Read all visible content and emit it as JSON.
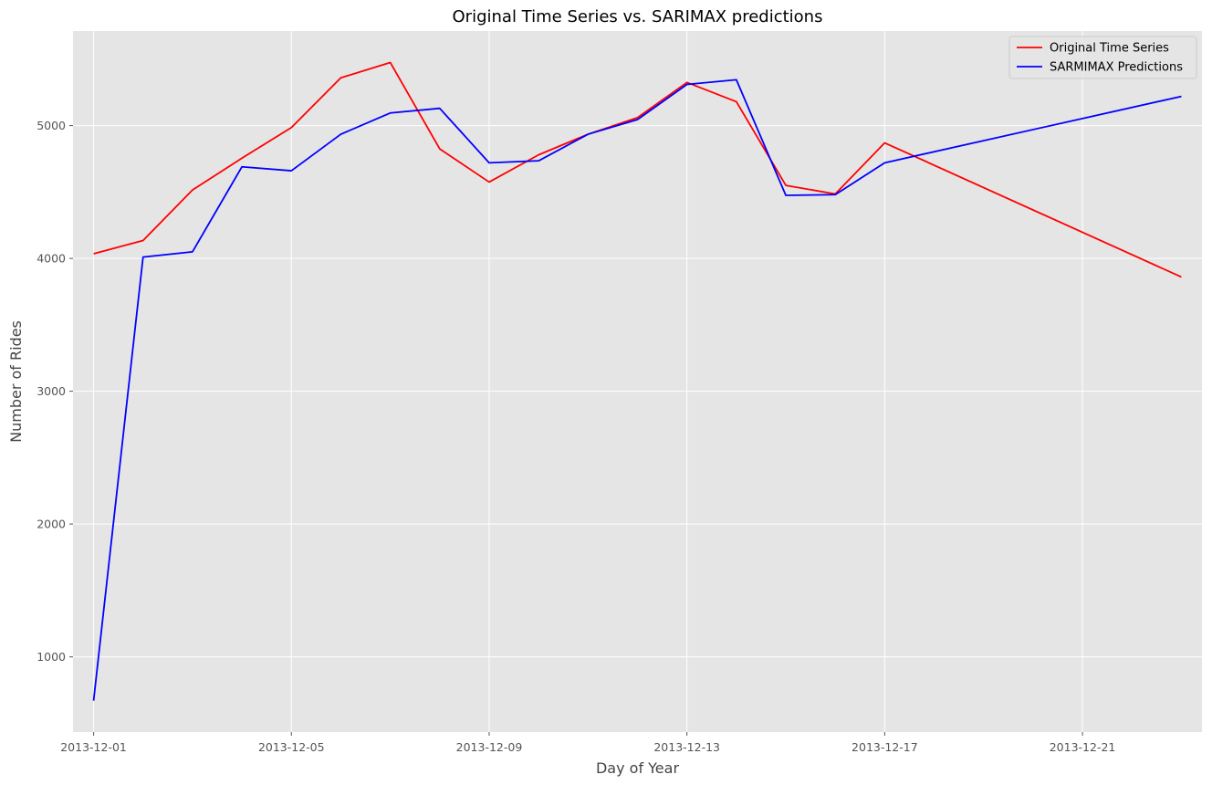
{
  "chart_data": {
    "type": "line",
    "title": "Original Time Series vs. SARIMAX predictions",
    "xlabel": "Day of Year",
    "ylabel": "Number of Rides",
    "x": [
      "2013-12-01",
      "2013-12-02",
      "2013-12-03",
      "2013-12-04",
      "2013-12-05",
      "2013-12-06",
      "2013-12-07",
      "2013-12-08",
      "2013-12-09",
      "2013-12-10",
      "2013-12-11",
      "2013-12-12",
      "2013-12-13",
      "2013-12-14",
      "2013-12-15",
      "2013-12-16",
      "2013-12-17",
      "2013-12-23"
    ],
    "series": [
      {
        "name": "Original Time Series",
        "color": "#ff0000",
        "values": [
          4035,
          4135,
          4515,
          4755,
          4985,
          5360,
          5475,
          4825,
          4575,
          4780,
          4935,
          5060,
          5325,
          5180,
          4550,
          4485,
          4870,
          3860
        ]
      },
      {
        "name": "SARMIMAX Predictions",
        "color": "#0000ff",
        "values": [
          670,
          4010,
          4050,
          4690,
          4660,
          4935,
          5095,
          5130,
          4720,
          4735,
          4935,
          5045,
          5310,
          5345,
          4475,
          4480,
          4720,
          5220
        ]
      }
    ],
    "xticks": [
      "2013-12-01",
      "2013-12-05",
      "2013-12-09",
      "2013-12-13",
      "2013-12-17",
      "2013-12-21"
    ],
    "yticks": [
      1000,
      2000,
      3000,
      4000,
      5000
    ],
    "xlim": [
      "2013-11-30T14:00",
      "2013-12-23T10:00"
    ],
    "ylim": [
      434,
      5712
    ],
    "grid": true,
    "legend_position": "top-right",
    "background_color": "#e5e5e5",
    "grid_color": "#ffffff"
  }
}
